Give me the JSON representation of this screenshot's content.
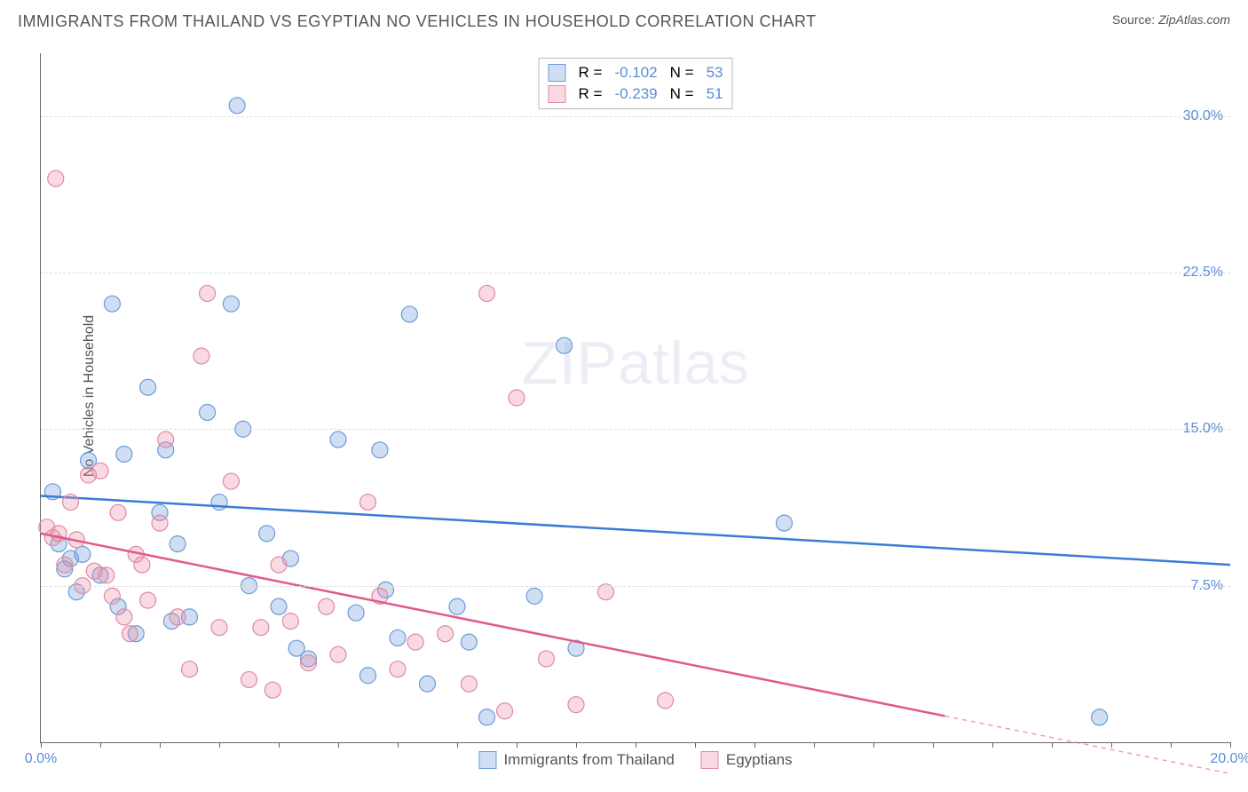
{
  "title": "IMMIGRANTS FROM THAILAND VS EGYPTIAN NO VEHICLES IN HOUSEHOLD CORRELATION CHART",
  "source_label": "Source:",
  "source_value": "ZipAtlas.com",
  "ylabel": "No Vehicles in Household",
  "watermark_part1": "ZIP",
  "watermark_part2": "atlas",
  "chart": {
    "type": "scatter",
    "xlim": [
      0,
      20
    ],
    "ylim": [
      0,
      33
    ],
    "x_ticks": [
      0,
      5,
      10,
      15,
      20
    ],
    "x_tick_labels": [
      "0.0%",
      "",
      "",
      "",
      "20.0%"
    ],
    "x_minor_ticks": [
      1,
      2,
      3,
      4,
      6,
      7,
      8,
      9,
      11,
      12,
      13,
      14,
      16,
      17,
      18,
      19
    ],
    "y_gridlines": [
      7.5,
      15.0,
      22.5,
      30.0
    ],
    "y_tick_labels": [
      "7.5%",
      "15.0%",
      "22.5%",
      "30.0%"
    ],
    "grid_color": "#dddddd",
    "y_tick_color": "#5b8dd6",
    "x_tick_color": "#5b8dd6",
    "background": "#ffffff",
    "series": [
      {
        "name": "Immigrants from Thailand",
        "legend_label": "Immigrants from Thailand",
        "color_fill": "rgba(120,160,220,0.35)",
        "color_stroke": "#6a9bd8",
        "line_color": "#3a7bd5",
        "marker_radius": 9,
        "R": "-0.102",
        "N": "53",
        "trend": {
          "x1": 0,
          "y1": 11.8,
          "x2": 20,
          "y2": 8.5,
          "solid_until_x": 20
        },
        "points": [
          [
            0.2,
            12.0
          ],
          [
            0.3,
            9.5
          ],
          [
            0.4,
            8.3
          ],
          [
            0.5,
            8.8
          ],
          [
            0.6,
            7.2
          ],
          [
            0.7,
            9.0
          ],
          [
            0.8,
            13.5
          ],
          [
            1.0,
            8.0
          ],
          [
            1.2,
            21.0
          ],
          [
            1.3,
            6.5
          ],
          [
            1.4,
            13.8
          ],
          [
            1.6,
            5.2
          ],
          [
            1.8,
            17.0
          ],
          [
            2.0,
            11.0
          ],
          [
            2.1,
            14.0
          ],
          [
            2.2,
            5.8
          ],
          [
            2.3,
            9.5
          ],
          [
            2.5,
            6.0
          ],
          [
            2.8,
            15.8
          ],
          [
            3.0,
            11.5
          ],
          [
            3.2,
            21.0
          ],
          [
            3.3,
            30.5
          ],
          [
            3.4,
            15.0
          ],
          [
            3.5,
            7.5
          ],
          [
            3.8,
            10.0
          ],
          [
            4.0,
            6.5
          ],
          [
            4.2,
            8.8
          ],
          [
            4.3,
            4.5
          ],
          [
            4.5,
            4.0
          ],
          [
            5.0,
            14.5
          ],
          [
            5.3,
            6.2
          ],
          [
            5.5,
            3.2
          ],
          [
            5.7,
            14.0
          ],
          [
            5.8,
            7.3
          ],
          [
            6.0,
            5.0
          ],
          [
            6.2,
            20.5
          ],
          [
            6.5,
            2.8
          ],
          [
            7.0,
            6.5
          ],
          [
            7.2,
            4.8
          ],
          [
            7.5,
            1.2
          ],
          [
            8.3,
            7.0
          ],
          [
            8.8,
            19.0
          ],
          [
            9.0,
            4.5
          ],
          [
            12.5,
            10.5
          ],
          [
            17.8,
            1.2
          ]
        ]
      },
      {
        "name": "Egyptians",
        "legend_label": "Egyptians",
        "color_fill": "rgba(235,140,165,0.32)",
        "color_stroke": "#e089a3",
        "line_color": "#e05a8a",
        "marker_radius": 9,
        "R": "-0.239",
        "N": "51",
        "trend": {
          "x1": 0,
          "y1": 10.0,
          "x2": 20,
          "y2": -1.5,
          "solid_until_x": 15.2
        },
        "points": [
          [
            0.1,
            10.3
          ],
          [
            0.2,
            9.8
          ],
          [
            0.25,
            27.0
          ],
          [
            0.3,
            10.0
          ],
          [
            0.4,
            8.5
          ],
          [
            0.5,
            11.5
          ],
          [
            0.6,
            9.7
          ],
          [
            0.7,
            7.5
          ],
          [
            0.8,
            12.8
          ],
          [
            0.9,
            8.2
          ],
          [
            1.0,
            13.0
          ],
          [
            1.1,
            8.0
          ],
          [
            1.2,
            7.0
          ],
          [
            1.3,
            11.0
          ],
          [
            1.4,
            6.0
          ],
          [
            1.5,
            5.2
          ],
          [
            1.6,
            9.0
          ],
          [
            1.7,
            8.5
          ],
          [
            1.8,
            6.8
          ],
          [
            2.0,
            10.5
          ],
          [
            2.1,
            14.5
          ],
          [
            2.3,
            6.0
          ],
          [
            2.5,
            3.5
          ],
          [
            2.7,
            18.5
          ],
          [
            2.8,
            21.5
          ],
          [
            3.0,
            5.5
          ],
          [
            3.2,
            12.5
          ],
          [
            3.5,
            3.0
          ],
          [
            3.7,
            5.5
          ],
          [
            3.9,
            2.5
          ],
          [
            4.0,
            8.5
          ],
          [
            4.2,
            5.8
          ],
          [
            4.5,
            3.8
          ],
          [
            4.8,
            6.5
          ],
          [
            5.0,
            4.2
          ],
          [
            5.5,
            11.5
          ],
          [
            5.7,
            7.0
          ],
          [
            6.0,
            3.5
          ],
          [
            6.3,
            4.8
          ],
          [
            6.8,
            5.2
          ],
          [
            7.2,
            2.8
          ],
          [
            7.5,
            21.5
          ],
          [
            7.8,
            1.5
          ],
          [
            8.0,
            16.5
          ],
          [
            8.5,
            4.0
          ],
          [
            9.0,
            1.8
          ],
          [
            9.5,
            7.2
          ],
          [
            10.5,
            2.0
          ]
        ]
      }
    ],
    "legend_top": {
      "R_label": "R =",
      "N_label": "N =",
      "text_color": "#555",
      "value_color": "#5b8dd6"
    }
  }
}
